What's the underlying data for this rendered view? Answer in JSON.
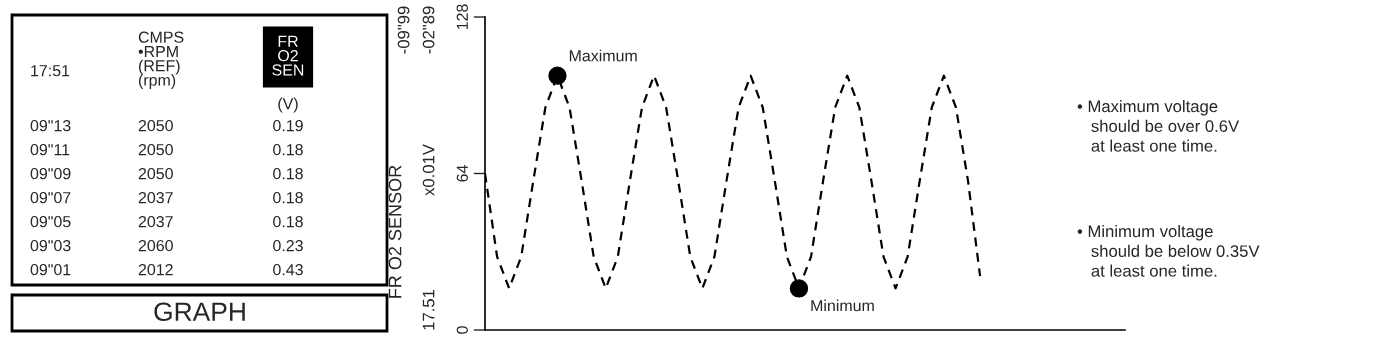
{
  "chart_data": [
    {
      "type": "other",
      "annotations": [
        "17:51",
        "CMPS\n•RPM\n(REF)\n(rpm)",
        "FR\nO2\nSEN",
        "(V)",
        "09\"13",
        "2050",
        "0.19",
        "09\"11",
        "2050",
        "0.18",
        "09\"09",
        "2050",
        "0.18",
        "09\"07",
        "2037",
        "0.18",
        "09\"05",
        "2037",
        "0.18",
        "09\"03",
        "2060",
        "0.23",
        "09\"01",
        "2012",
        "0.43",
        "GRAPH"
      ]
    },
    {
      "type": "line",
      "ylabel": "FR O2 SENSOR",
      "line_style": "dashed",
      "tick_labels": "y",
      "grid": false,
      "legend": false,
      "categories": [
        null,
        null,
        null,
        null,
        null,
        null,
        null,
        null,
        null,
        null,
        null,
        null,
        null,
        null,
        null,
        null,
        null,
        null,
        null,
        null,
        null,
        null,
        null,
        null,
        null,
        null,
        null,
        null,
        null,
        null,
        null,
        null,
        null,
        null,
        null,
        null,
        null,
        null,
        null,
        null,
        null,
        null,
        null,
        null,
        null,
        null,
        null,
        null,
        null,
        null,
        null,
        null,
        null,
        null
      ],
      "ylim": [
        0,
        128
      ],
      "yticks": [
        0,
        64,
        128
      ],
      "series": [
        {
          "type": "line",
          "color": "#000000",
          "marker": "none",
          "values": [
            64,
            30,
            17,
            30,
            61,
            91,
            104,
            91,
            61,
            30,
            17,
            30,
            61,
            91,
            104,
            91,
            61,
            30,
            17,
            30,
            61,
            91,
            104,
            91,
            61,
            30,
            17,
            30,
            61,
            91,
            104,
            91,
            61,
            30,
            17,
            30,
            61,
            91,
            104,
            91,
            61,
            22,
            null,
            null,
            null,
            null,
            null,
            null,
            null,
            null,
            null,
            null,
            null,
            null
          ]
        },
        {
          "type": "scatter",
          "color": "#000000",
          "marker": "circle",
          "values": [
            null,
            null,
            null,
            null,
            null,
            null,
            104,
            null,
            null,
            null,
            null,
            null,
            null,
            null,
            null,
            null,
            null,
            null,
            null,
            null,
            null,
            null,
            null,
            null,
            null,
            null,
            17,
            null,
            null,
            null,
            null,
            null,
            null,
            null,
            null,
            null,
            null,
            null,
            null,
            null,
            null,
            null,
            null,
            null,
            null,
            null,
            null,
            null,
            null,
            null,
            null,
            null,
            null,
            null
          ],
          "value_labels": [
            null,
            null,
            null,
            null,
            null,
            null,
            "Maximum",
            null,
            null,
            null,
            null,
            null,
            null,
            null,
            null,
            null,
            null,
            null,
            null,
            null,
            null,
            null,
            null,
            null,
            null,
            null,
            "Minimum",
            null,
            null,
            null,
            null,
            null,
            null,
            null,
            null,
            null,
            null,
            null,
            null,
            null,
            null,
            null,
            null,
            null,
            null,
            null,
            null,
            null,
            null,
            null,
            null,
            null,
            null,
            null
          ]
        }
      ],
      "annotations": [
        "x0.01V",
        "17.51",
        "-02\"89",
        "-09\"99",
        "• Maximum voltage\n   should be over 0.6V\n   at least one time.",
        "• Minimum voltage\n   should be below 0.35V\n   at least one time."
      ]
    }
  ]
}
